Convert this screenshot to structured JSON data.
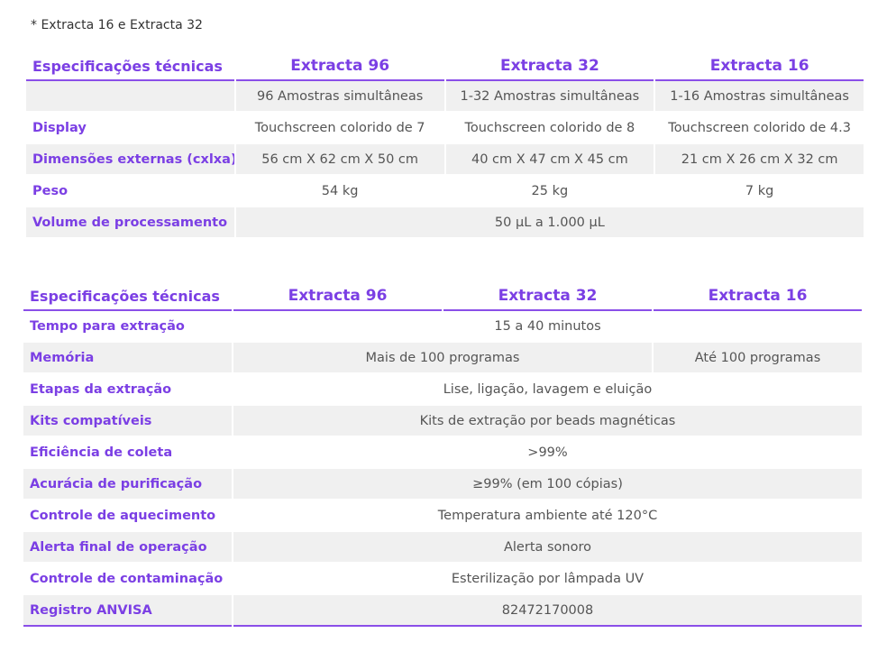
{
  "note": "* Extracta 16 e Extracta 32",
  "table1": {
    "headers": [
      "Especificações técnicas",
      "Extracta 96",
      "Extracta 32",
      "Extracta 16"
    ],
    "rows": [
      {
        "label": "",
        "cells": [
          "96 Amostras simultâneas",
          "1-32 Amostras simultâneas",
          "1-16 Amostras simultâneas"
        ]
      },
      {
        "label": "Display",
        "cells": [
          "Touchscreen colorido de 7",
          "Touchscreen colorido de 8",
          "Touchscreen colorido de 4.3"
        ]
      },
      {
        "label": "Dimensões externas (cxlxa)",
        "cells": [
          "56 cm X 62 cm X 50 cm",
          "40 cm X 47 cm X 45 cm",
          "21 cm X 26 cm X 32 cm"
        ]
      },
      {
        "label": "Peso",
        "cells": [
          "54 kg",
          "25 kg",
          "7 kg"
        ]
      },
      {
        "label": "Volume de processamento",
        "cells": [
          "50 µL a 1.000 µL"
        ]
      }
    ]
  },
  "table2": {
    "headers": [
      "Especificações técnicas",
      "Extracta 96",
      "Extracta 32",
      "Extracta 16"
    ],
    "rows": [
      {
        "label": "Tempo para extração",
        "cells": [
          "15 a 40 minutos"
        ]
      },
      {
        "label": "Memória",
        "cells": [
          "Mais de 100 programas",
          "Até 100 programas"
        ]
      },
      {
        "label": "Etapas da extração",
        "cells": [
          "Lise, ligação, lavagem e eluição"
        ]
      },
      {
        "label": "Kits compatíveis",
        "cells": [
          "Kits de extração por beads magnéticas"
        ]
      },
      {
        "label": "Eficiência de coleta",
        "cells": [
          ">99%"
        ]
      },
      {
        "label": "Acurácia de purificação",
        "cells": [
          "≥99% (em 100 cópias)"
        ]
      },
      {
        "label": "Controle de aquecimento",
        "cells": [
          "Temperatura ambiente até 120°C"
        ]
      },
      {
        "label": "Alerta final de operação",
        "cells": [
          "Alerta sonoro"
        ]
      },
      {
        "label": "Controle de contaminação",
        "cells": [
          "Esterilização por lâmpada UV"
        ]
      },
      {
        "label": "Registro ANVISA",
        "cells": [
          "82472170008"
        ]
      }
    ]
  }
}
